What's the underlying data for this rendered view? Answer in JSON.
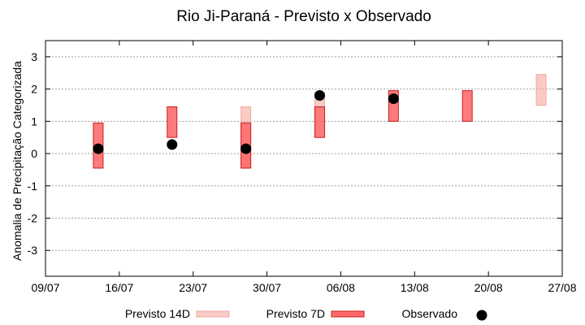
{
  "chart_data": {
    "type": "range-bar",
    "title": "Rio Ji-Paraná - Previsto x Observado",
    "ylabel": "Anomalia de Precipitação Categorizada",
    "xlabel": "",
    "ylim": [
      -3.8,
      3.5
    ],
    "yticks": [
      -3,
      -2,
      -1,
      0,
      1,
      2,
      3
    ],
    "ytick_labels": [
      "-3",
      "-2",
      "-1",
      "0",
      "1",
      "2",
      "3"
    ],
    "xlim": [
      "2023-07-09",
      "2023-08-27"
    ],
    "xticks": [
      "2023-07-09",
      "2023-07-16",
      "2023-07-23",
      "2023-07-30",
      "2023-08-06",
      "2023-08-13",
      "2023-08-20",
      "2023-08-27"
    ],
    "xtick_labels": [
      "09/07",
      "16/07",
      "23/07",
      "30/07",
      "06/08",
      "13/08",
      "20/08",
      "27/08"
    ],
    "grid": true,
    "legend_position": "bottom",
    "series": [
      {
        "name": "Previsto 14D",
        "color": "#f4a8a0",
        "ranges": [
          {
            "date": "2023-07-28",
            "low": -0.45,
            "high": 1.45
          },
          {
            "date": "2023-08-04",
            "low": 1.45,
            "high": 1.9
          },
          {
            "date": "2023-08-25",
            "low": 1.5,
            "high": 2.45
          }
        ]
      },
      {
        "name": "Previsto 7D",
        "color": "#ff6b6b",
        "ranges": [
          {
            "date": "2023-07-14",
            "low": -0.45,
            "high": 0.95
          },
          {
            "date": "2023-07-21",
            "low": 0.5,
            "high": 1.45
          },
          {
            "date": "2023-07-28",
            "low": -0.45,
            "high": 0.95
          },
          {
            "date": "2023-08-04",
            "low": 0.5,
            "high": 1.45
          },
          {
            "date": "2023-08-11",
            "low": 1.0,
            "high": 1.95
          },
          {
            "date": "2023-08-18",
            "low": 1.0,
            "high": 1.95
          }
        ]
      },
      {
        "name": "Observado",
        "color": "#000000",
        "points": [
          {
            "date": "2023-07-14",
            "value": 0.15
          },
          {
            "date": "2023-07-21",
            "value": 0.28
          },
          {
            "date": "2023-07-28",
            "value": 0.15
          },
          {
            "date": "2023-08-04",
            "value": 1.8
          },
          {
            "date": "2023-08-11",
            "value": 1.7
          }
        ]
      }
    ]
  }
}
